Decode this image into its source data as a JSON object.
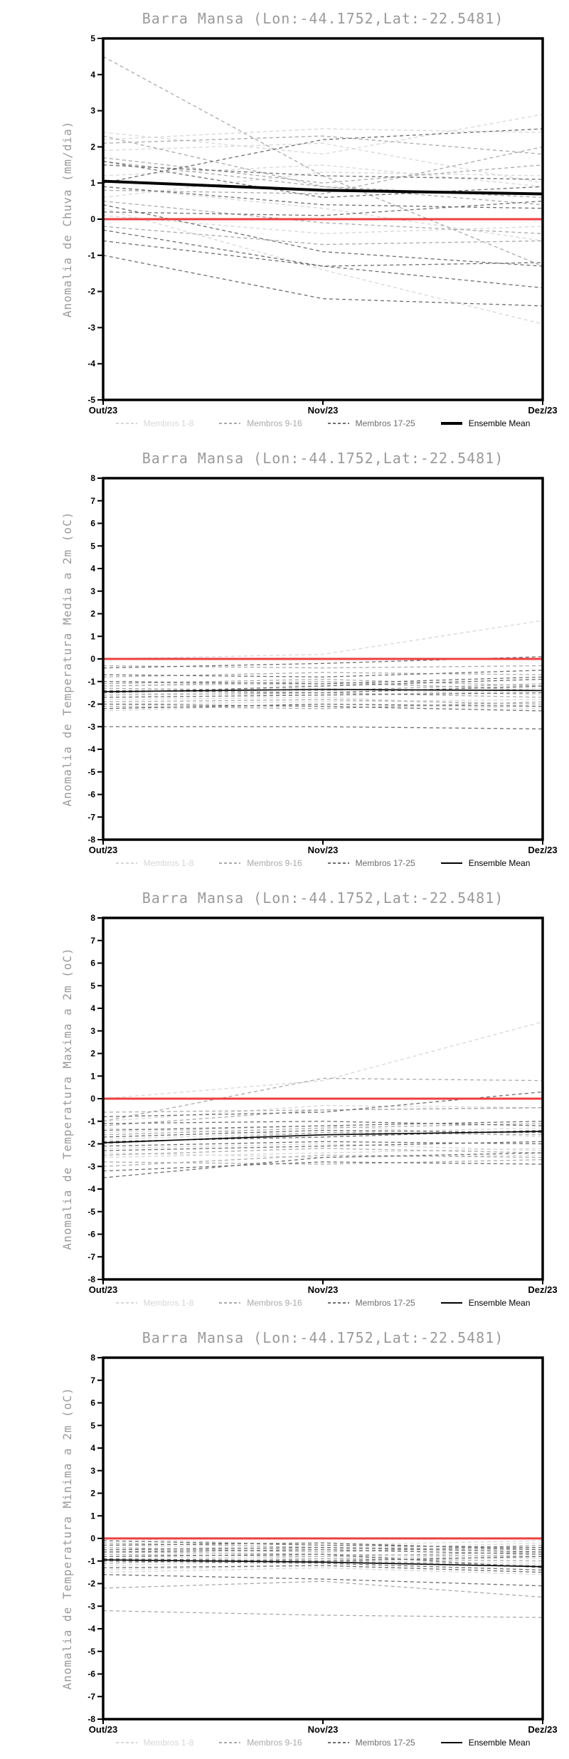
{
  "page_title": "Barra Mansa ensemble forecast anomalies",
  "location": "Barra Mansa (Lon:-44.1752,Lat:-22.5481)",
  "colors": {
    "members_1_8": "#d7d7d7",
    "members_9_16": "#aaaaaa",
    "members_17_25": "#6e6e6e",
    "ensemble_mean": "#000000",
    "zero_line": "#ee3f3f",
    "title_text": "#9a9a9a",
    "axis": "#000000"
  },
  "chart_data": [
    {
      "type": "line",
      "title": "Barra Mansa (Lon:-44.1752,Lat:-22.5481)",
      "ylabel": "Anomalia de Chuva (mm/dia)",
      "x": [
        "Out/23",
        "Nov/23",
        "Dez/23"
      ],
      "ylim": [
        -5,
        5
      ],
      "ytick_step": 1,
      "grid": false,
      "legend_position": "bottom",
      "zero_line": {
        "values": [
          0,
          0,
          0
        ],
        "color": "#ee3f3f",
        "width": 3
      },
      "groups": [
        {
          "name": "Membros 1-8",
          "color": "#d7d7d7",
          "series": [
            [
              2.4,
              1.8,
              2.9
            ],
            [
              2.2,
              2.5,
              2.4
            ],
            [
              1.2,
              1.5,
              0.9
            ],
            [
              0.9,
              0.3,
              -0.6
            ],
            [
              0.3,
              -1.4,
              -2.9
            ],
            [
              0.6,
              1.3,
              1.2
            ],
            [
              1.9,
              2.1,
              1.0
            ],
            [
              0.1,
              -0.4,
              -0.2
            ]
          ]
        },
        {
          "name": "Membros 9-16",
          "color": "#aaaaaa",
          "series": [
            [
              4.5,
              1.2,
              -1.3
            ],
            [
              2.3,
              0.9,
              0.6
            ],
            [
              1.7,
              1.0,
              1.5
            ],
            [
              1.6,
              0.9,
              0.4
            ],
            [
              0.8,
              0.7,
              2.0
            ],
            [
              0.5,
              -0.1,
              -0.4
            ],
            [
              -0.2,
              -0.7,
              -0.6
            ],
            [
              2.1,
              2.3,
              1.8
            ]
          ]
        },
        {
          "name": "Membros 17-25",
          "color": "#6e6e6e",
          "series": [
            [
              1.6,
              0.6,
              0.9
            ],
            [
              1.5,
              1.2,
              1.1
            ],
            [
              0.9,
              0.4,
              0.3
            ],
            [
              0.4,
              -0.9,
              -1.3
            ],
            [
              -0.3,
              -1.3,
              -1.9
            ],
            [
              -0.6,
              -1.3,
              -1.2
            ],
            [
              -1.0,
              -2.2,
              -2.4
            ],
            [
              0.2,
              0.1,
              0.5
            ],
            [
              1.0,
              2.2,
              2.5
            ]
          ]
        }
      ],
      "ensemble_mean": {
        "label": "Ensemble Mean",
        "color": "#000000",
        "width": 4,
        "values": [
          1.05,
          0.8,
          0.7
        ]
      },
      "legend": [
        {
          "label": "Membros 1-8",
          "color": "#d7d7d7",
          "style": "dashed",
          "width": 2
        },
        {
          "label": "Membros 9-16",
          "color": "#aaaaaa",
          "style": "dashed",
          "width": 2
        },
        {
          "label": "Membros 17-25",
          "color": "#6e6e6e",
          "style": "dashed",
          "width": 2
        },
        {
          "label": "Ensemble Mean",
          "color": "#000000",
          "style": "solid",
          "width": 4
        }
      ]
    },
    {
      "type": "line",
      "title": "Barra Mansa (Lon:-44.1752,Lat:-22.5481)",
      "ylabel": "Anomalia de Temperatura Media a 2m (oC)",
      "x": [
        "Out/23",
        "Nov/23",
        "Dez/23"
      ],
      "ylim": [
        -8,
        8
      ],
      "ytick_step": 1,
      "grid": false,
      "legend_position": "bottom",
      "zero_line": {
        "values": [
          0,
          0,
          0
        ],
        "color": "#ee3f3f",
        "width": 3
      },
      "groups": [
        {
          "name": "Membros 1-8",
          "color": "#d7d7d7",
          "series": [
            [
              0.0,
              0.2,
              1.7
            ],
            [
              -1.2,
              -1.1,
              -1.3
            ],
            [
              -1.5,
              -1.6,
              -1.4
            ],
            [
              -2.3,
              -2.0,
              -2.2
            ],
            [
              -1.8,
              -1.7,
              -2.1
            ],
            [
              -1.0,
              -1.2,
              -0.9
            ],
            [
              -1.4,
              -1.3,
              -1.6
            ],
            [
              -2.0,
              -1.9,
              -1.8
            ]
          ]
        },
        {
          "name": "Membros 9-16",
          "color": "#aaaaaa",
          "series": [
            [
              -0.3,
              -0.4,
              -0.3
            ],
            [
              -0.8,
              -0.6,
              -0.7
            ],
            [
              -1.1,
              -0.9,
              -1.2
            ],
            [
              -1.3,
              -1.4,
              -1.1
            ],
            [
              -1.6,
              -1.5,
              -1.7
            ],
            [
              -1.9,
              -1.8,
              -2.0
            ],
            [
              -2.1,
              -2.2,
              -1.9
            ],
            [
              -1.2,
              -1.0,
              -1.4
            ]
          ]
        },
        {
          "name": "Membros 17-25",
          "color": "#6e6e6e",
          "series": [
            [
              -0.7,
              -0.8,
              -0.5
            ],
            [
              -1.0,
              -1.1,
              -0.8
            ],
            [
              -1.4,
              -1.5,
              -1.2
            ],
            [
              -1.7,
              -1.6,
              -1.5
            ],
            [
              -2.0,
              -2.1,
              -2.3
            ],
            [
              -2.2,
              -2.0,
              -2.1
            ],
            [
              -3.0,
              -3.0,
              -3.1
            ],
            [
              -1.5,
              -1.2,
              -0.9
            ],
            [
              -0.4,
              -0.2,
              0.1
            ]
          ]
        }
      ],
      "ensemble_mean": {
        "label": "Ensemble Mean",
        "color": "#000000",
        "width": 1.6,
        "values": [
          -1.45,
          -1.35,
          -1.4
        ]
      },
      "legend": [
        {
          "label": "Membros 1-8",
          "color": "#d7d7d7",
          "style": "dashed",
          "width": 2
        },
        {
          "label": "Membros 9-16",
          "color": "#aaaaaa",
          "style": "dashed",
          "width": 2
        },
        {
          "label": "Membros 17-25",
          "color": "#6e6e6e",
          "style": "dashed",
          "width": 2
        },
        {
          "label": "Ensemble Mean",
          "color": "#000000",
          "style": "solid",
          "width": 2
        }
      ]
    },
    {
      "type": "line",
      "title": "Barra Mansa (Lon:-44.1752,Lat:-22.5481)",
      "ylabel": "Anomalia de Temperatura Maxima a 2m (oC)",
      "x": [
        "Out/23",
        "Nov/23",
        "Dez/23"
      ],
      "ylim": [
        -8,
        8
      ],
      "ytick_step": 1,
      "grid": false,
      "legend_position": "bottom",
      "zero_line": {
        "values": [
          0,
          0,
          0
        ],
        "color": "#ee3f3f",
        "width": 3
      },
      "groups": [
        {
          "name": "Membros 1-8",
          "color": "#d7d7d7",
          "series": [
            [
              0.0,
              0.8,
              3.4
            ],
            [
              -1.0,
              -0.3,
              -0.4
            ],
            [
              -1.5,
              -1.2,
              -1.7
            ],
            [
              -2.2,
              -2.0,
              -2.3
            ],
            [
              -2.6,
              -2.4,
              -2.2
            ],
            [
              -1.8,
              -1.5,
              -1.3
            ],
            [
              -1.3,
              -1.6,
              -1.5
            ],
            [
              -2.4,
              -2.6,
              -2.5
            ]
          ]
        },
        {
          "name": "Membros 9-16",
          "color": "#aaaaaa",
          "series": [
            [
              -1.0,
              0.9,
              0.8
            ],
            [
              -2.0,
              -1.5,
              -1.6
            ],
            [
              -2.5,
              -2.2,
              -2.4
            ],
            [
              -1.6,
              -1.3,
              -1.1
            ],
            [
              -3.0,
              -2.5,
              -2.6
            ],
            [
              -1.2,
              -0.5,
              -0.4
            ],
            [
              -2.8,
              -2.9,
              -2.7
            ],
            [
              -0.6,
              -0.5,
              -0.4
            ]
          ]
        },
        {
          "name": "Membros 17-25",
          "color": "#6e6e6e",
          "series": [
            [
              -3.5,
              -2.6,
              -2.4
            ],
            [
              -3.2,
              -2.8,
              -2.9
            ],
            [
              -1.4,
              -1.2,
              -1.0
            ],
            [
              -1.9,
              -1.7,
              -1.4
            ],
            [
              -2.1,
              -1.9,
              -2.0
            ],
            [
              -1.1,
              -1.0,
              -1.2
            ],
            [
              -2.3,
              -2.1,
              -1.9
            ],
            [
              -0.8,
              -0.6,
              0.3
            ],
            [
              -1.7,
              -1.4,
              -1.5
            ]
          ]
        }
      ],
      "ensemble_mean": {
        "label": "Ensemble Mean",
        "color": "#000000",
        "width": 1.6,
        "values": [
          -1.95,
          -1.6,
          -1.45
        ]
      },
      "legend": [
        {
          "label": "Membros 1-8",
          "color": "#d7d7d7",
          "style": "dashed",
          "width": 2
        },
        {
          "label": "Membros 9-16",
          "color": "#aaaaaa",
          "style": "dashed",
          "width": 2
        },
        {
          "label": "Membros 17-25",
          "color": "#6e6e6e",
          "style": "dashed",
          "width": 2
        },
        {
          "label": "Ensemble Mean",
          "color": "#000000",
          "style": "solid",
          "width": 2
        }
      ]
    },
    {
      "type": "line",
      "title": "Barra Mansa (Lon:-44.1752,Lat:-22.5481)",
      "ylabel": "Anomalia de Temperatura Minima a 2m (oC)",
      "x": [
        "Out/23",
        "Nov/23",
        "Dez/23"
      ],
      "ylim": [
        -8,
        8
      ],
      "ytick_step": 1,
      "grid": false,
      "legend_position": "bottom",
      "zero_line": {
        "values": [
          0,
          0,
          0
        ],
        "color": "#ee3f3f",
        "width": 3
      },
      "groups": [
        {
          "name": "Membros 1-8",
          "color": "#d7d7d7",
          "series": [
            [
              0.0,
              -0.3,
              -0.1
            ],
            [
              -0.5,
              -0.6,
              -0.4
            ],
            [
              -0.8,
              -0.9,
              -0.7
            ],
            [
              -1.2,
              -1.0,
              -1.1
            ],
            [
              -1.4,
              -1.2,
              -1.5
            ],
            [
              -0.3,
              -0.5,
              -0.2
            ],
            [
              -1.0,
              -0.8,
              -0.9
            ],
            [
              -1.5,
              -1.3,
              -1.6
            ]
          ]
        },
        {
          "name": "Membros 9-16",
          "color": "#aaaaaa",
          "series": [
            [
              -0.2,
              -0.4,
              -0.5
            ],
            [
              -0.6,
              -0.7,
              -0.8
            ],
            [
              -0.9,
              -1.0,
              -1.2
            ],
            [
              -1.1,
              -0.9,
              -1.0
            ],
            [
              -2.2,
              -1.9,
              -2.6
            ],
            [
              -0.4,
              -0.6,
              -0.3
            ],
            [
              -3.2,
              -3.4,
              -3.5
            ],
            [
              -0.7,
              -0.8,
              -0.6
            ]
          ]
        },
        {
          "name": "Membros 17-25",
          "color": "#6e6e6e",
          "series": [
            [
              -0.1,
              -0.3,
              -0.4
            ],
            [
              -0.5,
              -0.4,
              -0.6
            ],
            [
              -0.8,
              -0.7,
              -1.3
            ],
            [
              -1.0,
              -1.1,
              -1.4
            ],
            [
              -1.3,
              -1.2,
              -1.5
            ],
            [
              -0.6,
              -0.5,
              -0.7
            ],
            [
              -0.9,
              -1.0,
              -0.8
            ],
            [
              -1.6,
              -1.8,
              -2.1
            ],
            [
              -0.3,
              -0.2,
              -0.5
            ]
          ]
        }
      ],
      "ensemble_mean": {
        "label": "Ensemble Mean",
        "color": "#000000",
        "width": 1.6,
        "values": [
          -0.95,
          -1.05,
          -1.25
        ]
      },
      "legend": [
        {
          "label": "Membros 1-8",
          "color": "#d7d7d7",
          "style": "dashed",
          "width": 2
        },
        {
          "label": "Membros 9-16",
          "color": "#aaaaaa",
          "style": "dashed",
          "width": 2
        },
        {
          "label": "Membros 17-25",
          "color": "#6e6e6e",
          "style": "dashed",
          "width": 2
        },
        {
          "label": "Ensemble Mean",
          "color": "#000000",
          "style": "solid",
          "width": 2
        }
      ]
    }
  ]
}
